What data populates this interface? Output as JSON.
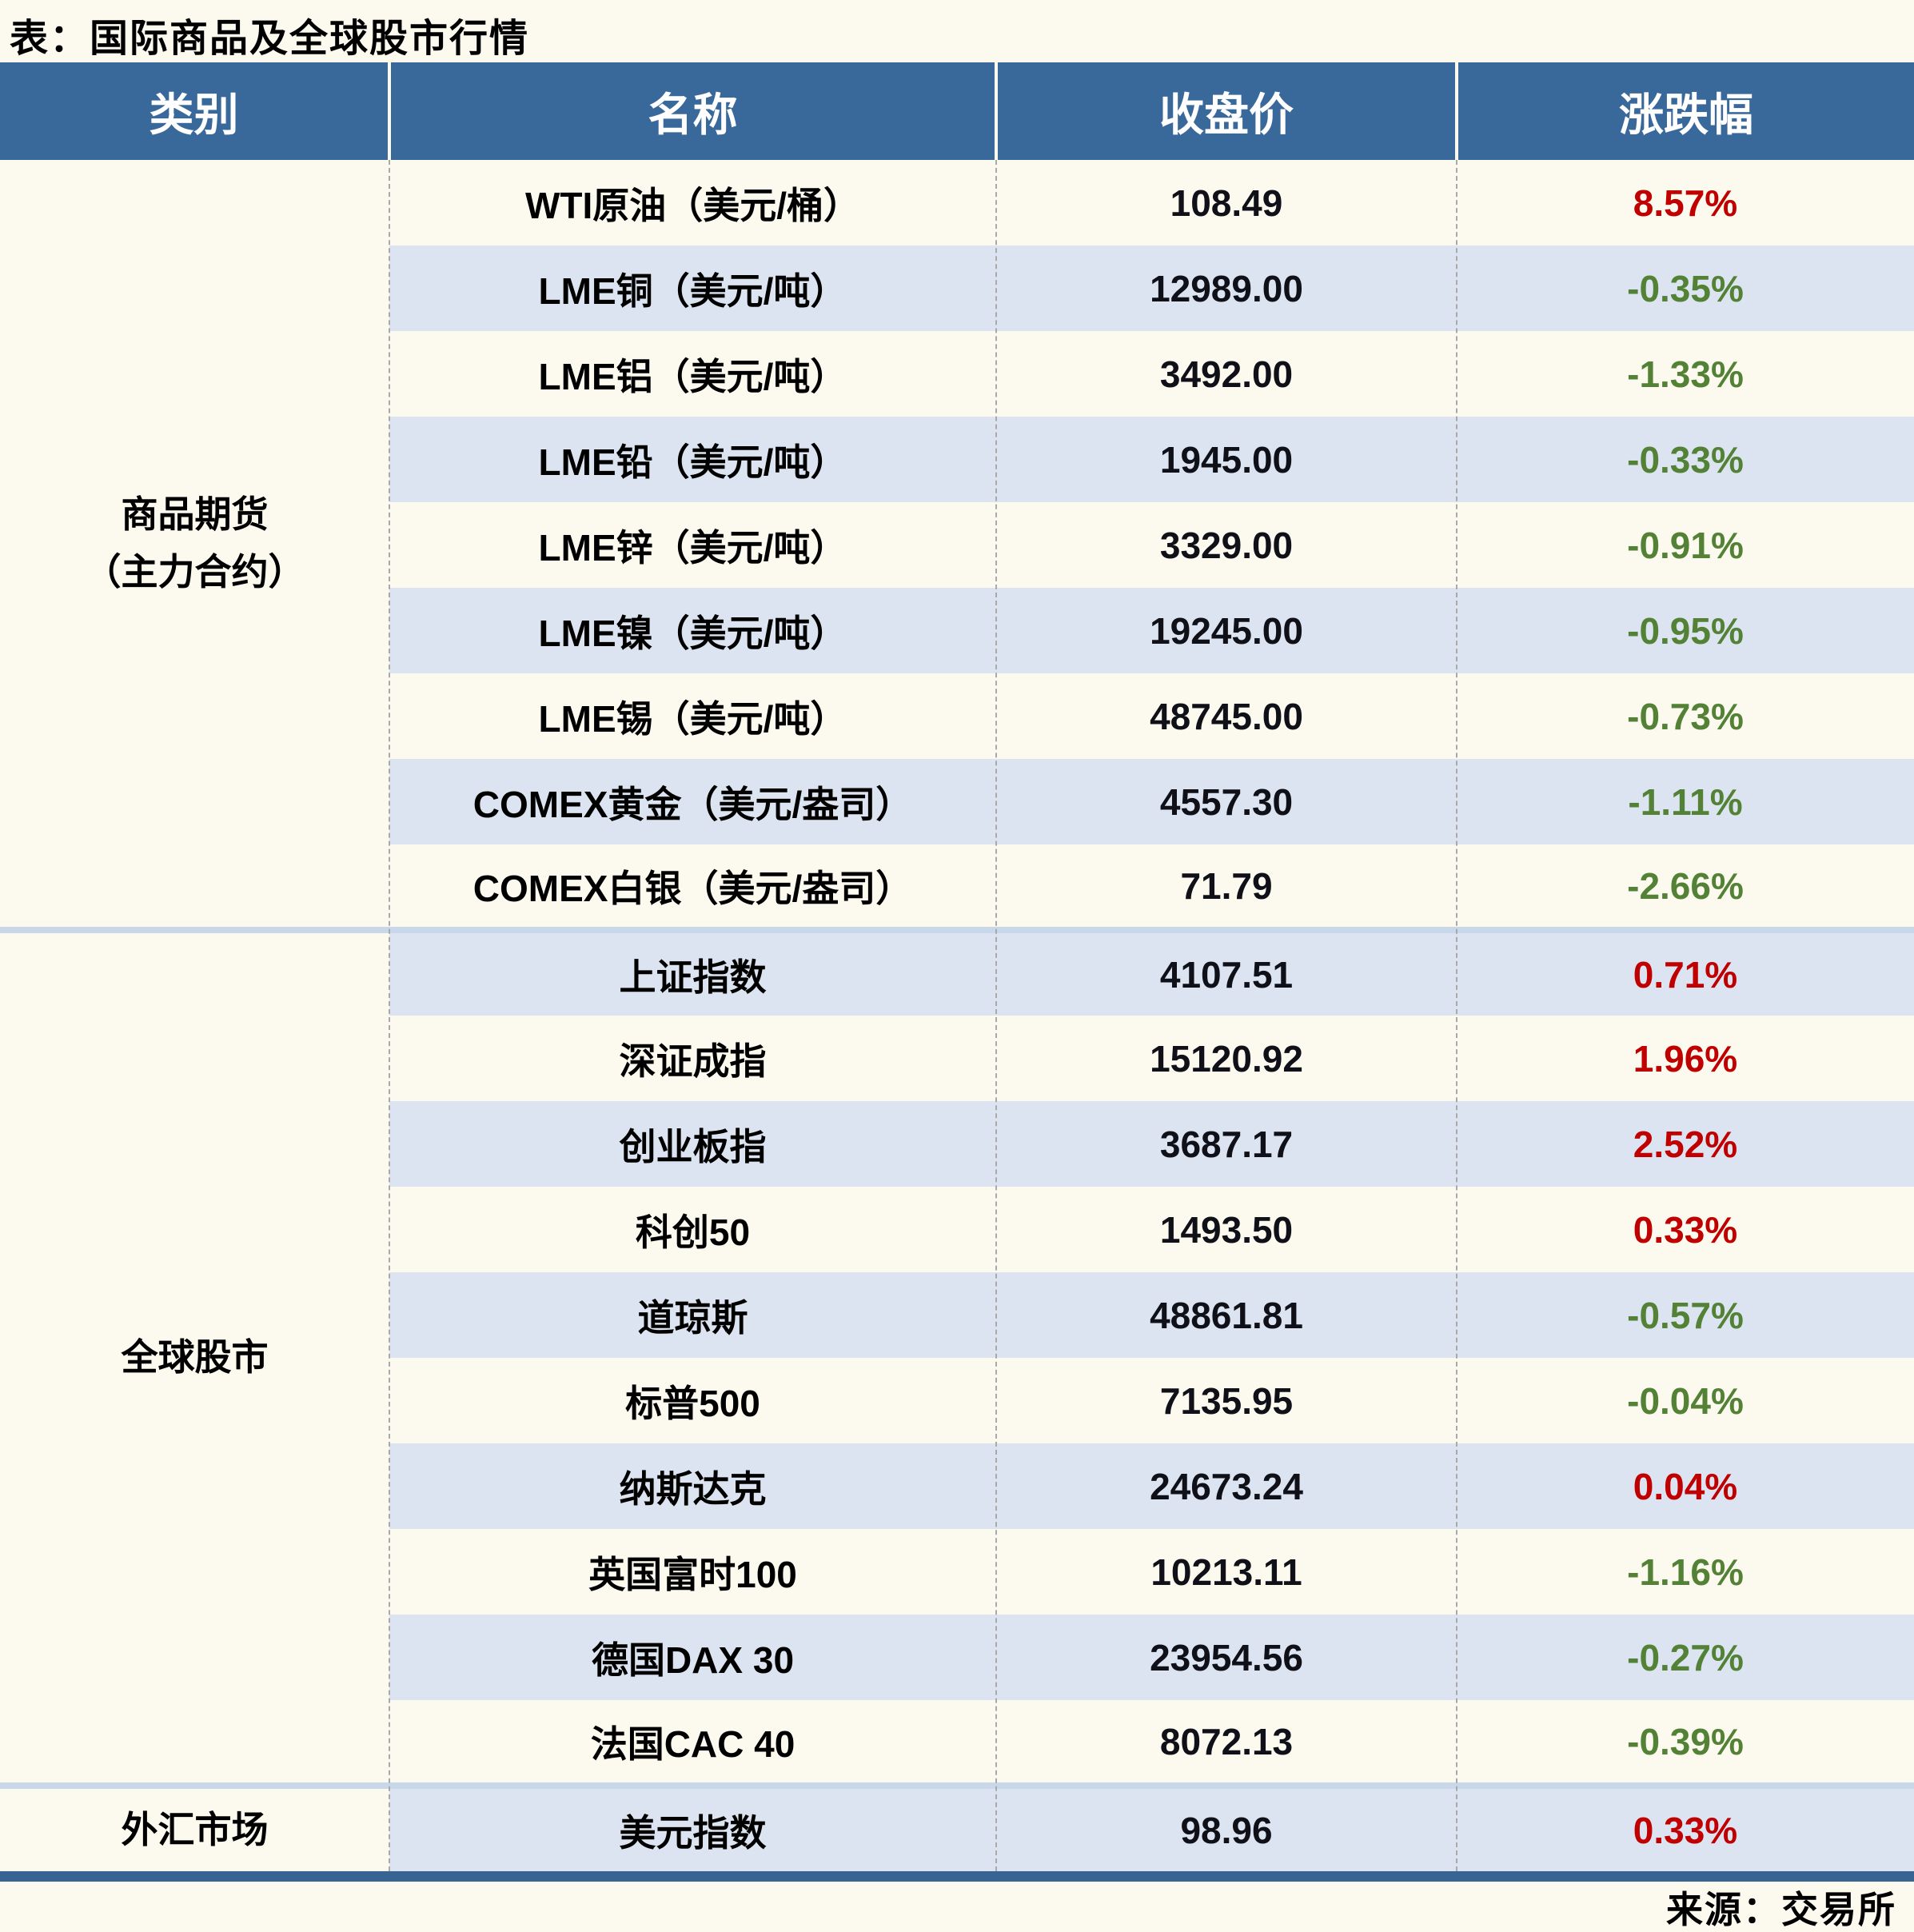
{
  "title": "表：国际商品及全球股市行情",
  "source": "来源：交易所",
  "colors": {
    "page_background": "#fcfaef",
    "header_background": "#39689a",
    "header_text": "#ffffff",
    "row_shading": "#dbe4f0",
    "section_divider": "#c8d8ea",
    "bottom_border": "#376492",
    "positive_change": "#c00000",
    "negative_change": "#538135"
  },
  "chart_data": {
    "type": "table",
    "title": "表：国际商品及全球股市行情",
    "columns": [
      "类别",
      "名称",
      "收盘价",
      "涨跌幅"
    ],
    "source_note": "来源：交易所",
    "sections": [
      {
        "category_lines": [
          "商品期货",
          "（主力合约）"
        ],
        "rows": [
          {
            "name": "WTI原油（美元/桶）",
            "close": "108.49",
            "change": "8.57%"
          },
          {
            "name": "LME铜（美元/吨）",
            "close": "12989.00",
            "change": "-0.35%"
          },
          {
            "name": "LME铝（美元/吨）",
            "close": "3492.00",
            "change": "-1.33%"
          },
          {
            "name": "LME铅（美元/吨）",
            "close": "1945.00",
            "change": "-0.33%"
          },
          {
            "name": "LME锌（美元/吨）",
            "close": "3329.00",
            "change": "-0.91%"
          },
          {
            "name": "LME镍（美元/吨）",
            "close": "19245.00",
            "change": "-0.95%"
          },
          {
            "name": "LME锡（美元/吨）",
            "close": "48745.00",
            "change": "-0.73%"
          },
          {
            "name": "COMEX黄金（美元/盎司）",
            "close": "4557.30",
            "change": "-1.11%"
          },
          {
            "name": "COMEX白银（美元/盎司）",
            "close": "71.79",
            "change": "-2.66%"
          }
        ]
      },
      {
        "category_lines": [
          "全球股市"
        ],
        "rows": [
          {
            "name": "上证指数",
            "close": "4107.51",
            "change": "0.71%"
          },
          {
            "name": "深证成指",
            "close": "15120.92",
            "change": "1.96%"
          },
          {
            "name": "创业板指",
            "close": "3687.17",
            "change": "2.52%"
          },
          {
            "name": "科创50",
            "close": "1493.50",
            "change": "0.33%"
          },
          {
            "name": "道琼斯",
            "close": "48861.81",
            "change": "-0.57%"
          },
          {
            "name": "标普500",
            "close": "7135.95",
            "change": "-0.04%"
          },
          {
            "name": "纳斯达克",
            "close": "24673.24",
            "change": "0.04%"
          },
          {
            "name": "英国富时100",
            "close": "10213.11",
            "change": "-1.16%"
          },
          {
            "name": "德国DAX 30",
            "close": "23954.56",
            "change": "-0.27%"
          },
          {
            "name": "法国CAC 40",
            "close": "8072.13",
            "change": "-0.39%"
          }
        ]
      },
      {
        "category_lines": [
          "外汇市场"
        ],
        "rows": [
          {
            "name": "美元指数",
            "close": "98.96",
            "change": "0.33%"
          }
        ]
      }
    ]
  }
}
